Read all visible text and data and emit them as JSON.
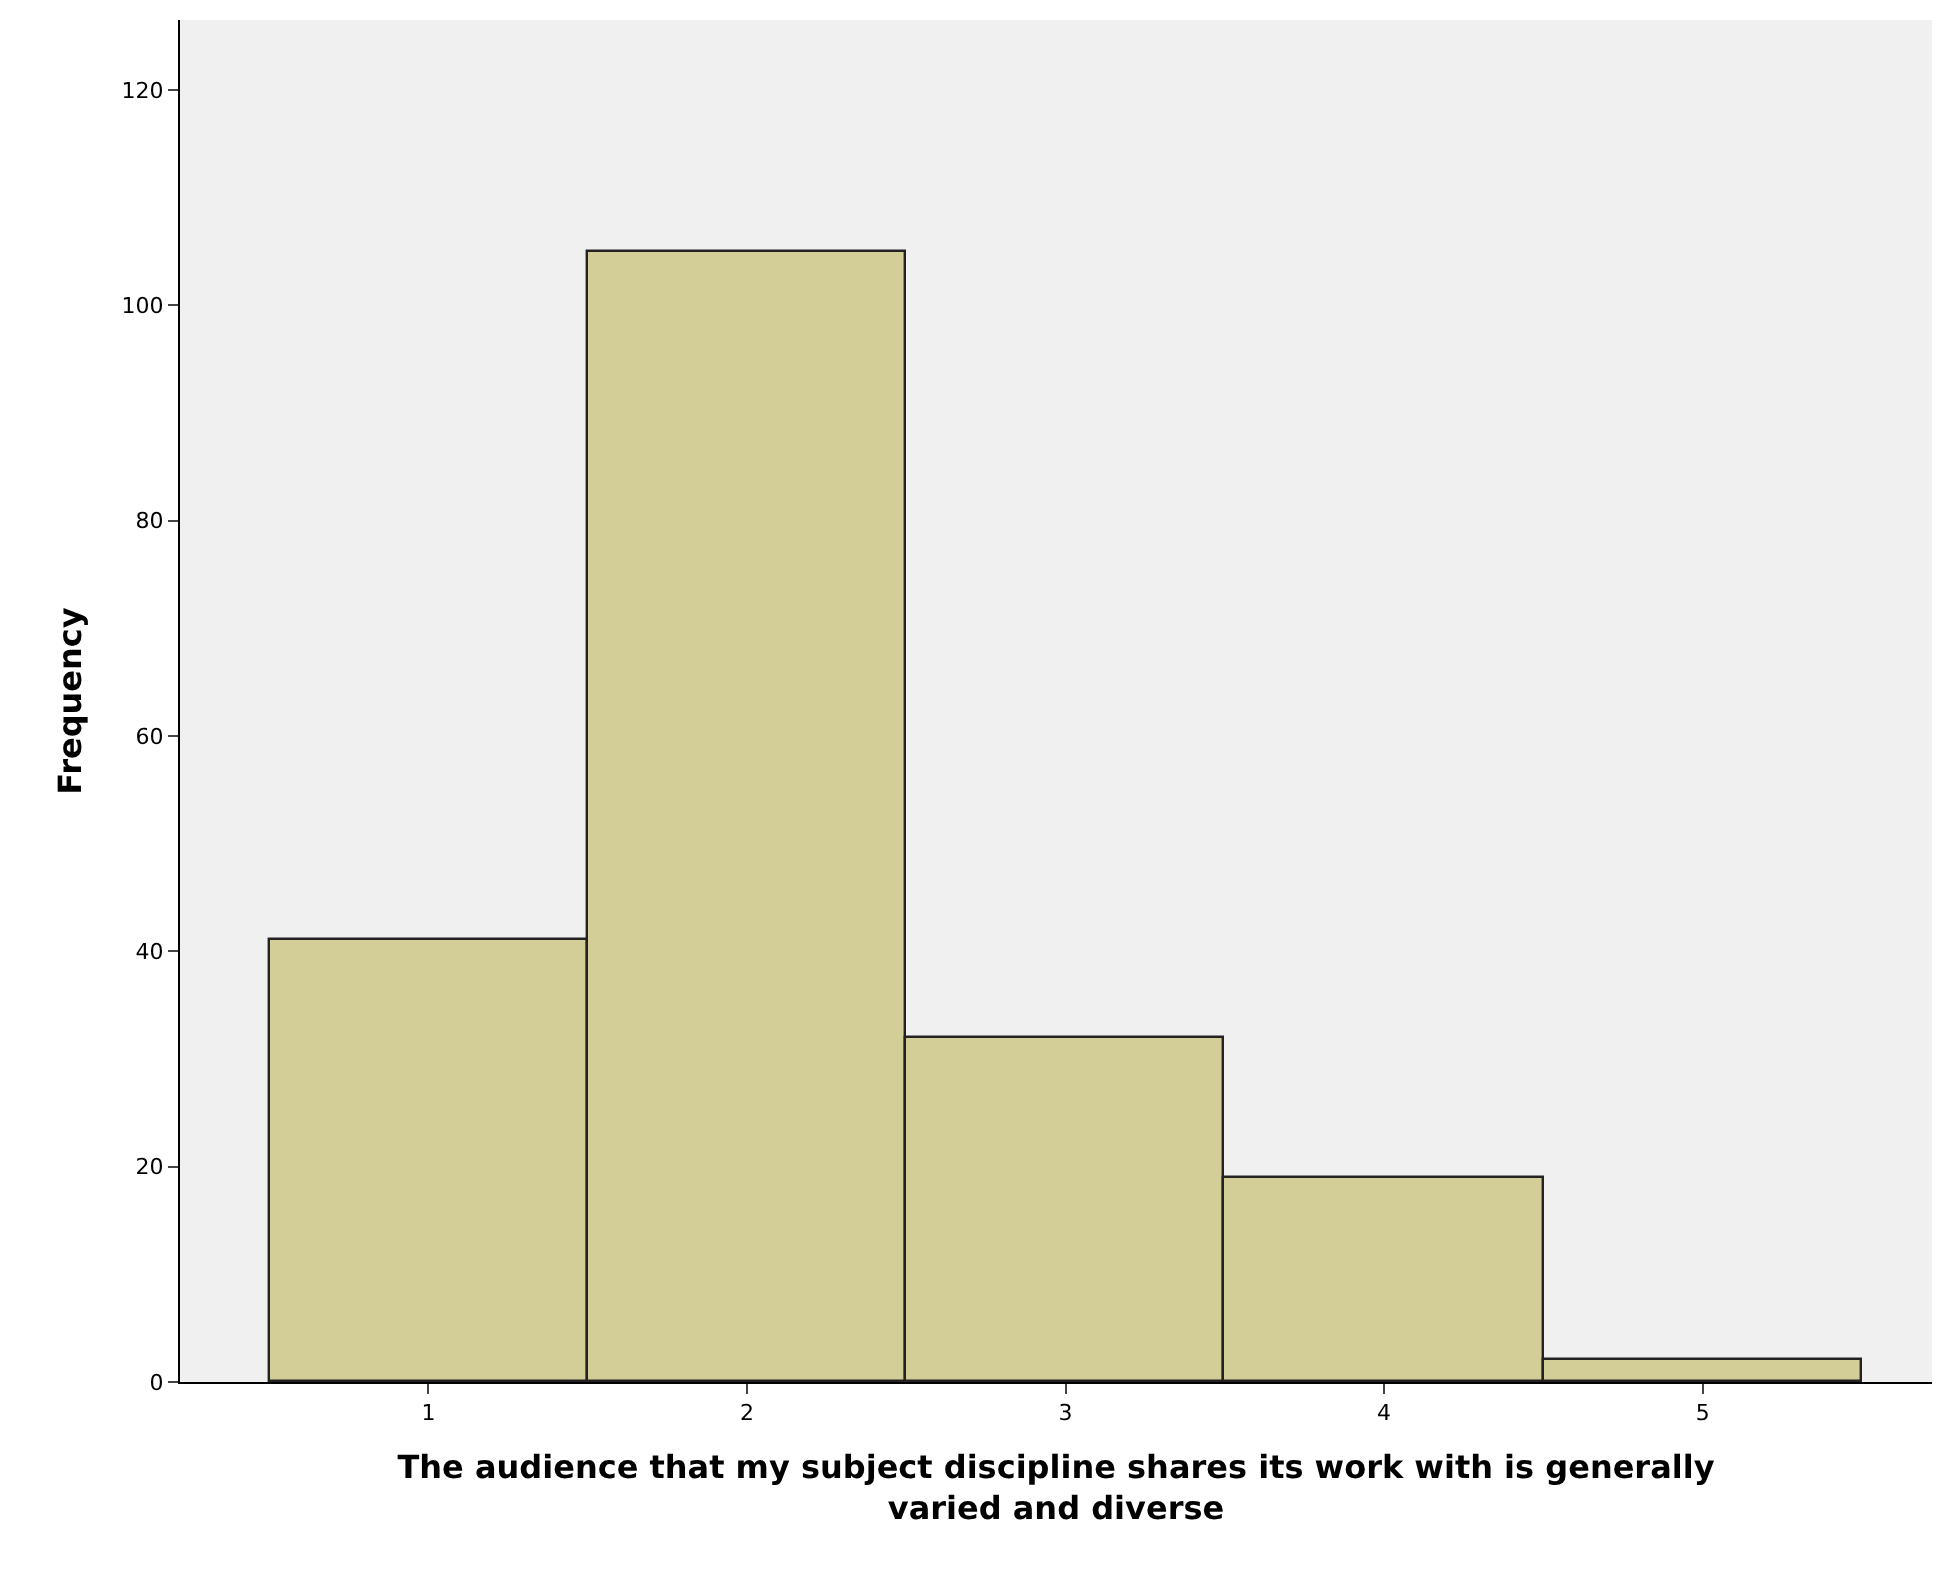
{
  "chart_data": {
    "type": "histogram",
    "xlabel": "The audience that my subject discipline shares its work with is generally varied and diverse",
    "ylabel": "Frequency",
    "bins": [
      0.5,
      1.5,
      2.5,
      3.5,
      4.5,
      5.5
    ],
    "values": [
      41,
      105,
      32,
      19,
      2
    ],
    "color": "#d3ce97",
    "xlim": [
      0.22,
      5.72
    ],
    "xticks": [
      1,
      2,
      3,
      4,
      5
    ],
    "ylim": [
      0,
      126.5
    ],
    "yticks": [
      0,
      20,
      40,
      60,
      80,
      100,
      120
    ],
    "grid": false
  }
}
